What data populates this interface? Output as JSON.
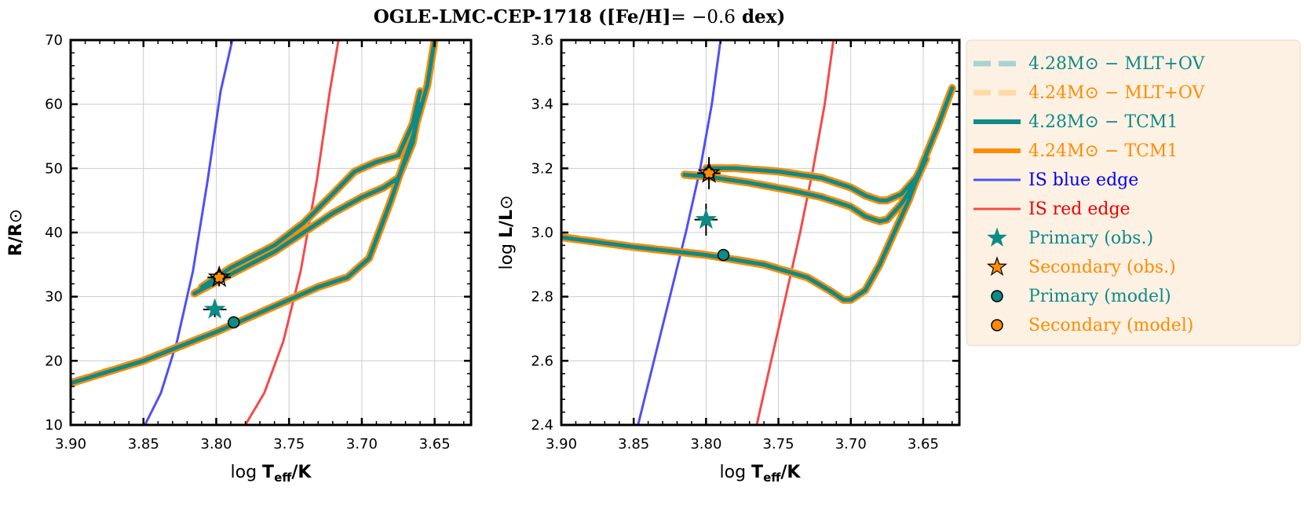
{
  "figure": {
    "title_name": "OGLE-LMC-CEP-1718",
    "title_feh": "([Fe/H]",
    "title_value": "= −0.6",
    "title_unit": "dex)"
  },
  "colors": {
    "teal": "#0e8a87",
    "orange": "#ff8c00",
    "teal_light": "#a7d3d2",
    "orange_light": "#ffd9a6",
    "blue_edge": "#5050f5",
    "red_edge": "#f54a4a",
    "grid": "#cccccc",
    "legend_bg": "#fdf1e4"
  },
  "legend": {
    "entries": [
      {
        "label": "4.28M⊙ − MLT+OV",
        "color": "#0e8a87",
        "kind": "dashed-teal"
      },
      {
        "label": "4.24M⊙ − MLT+OV",
        "color": "#ff8c00",
        "kind": "dashed-orange"
      },
      {
        "label": "4.28M⊙ − TCM1",
        "color": "#0e8a87",
        "kind": "solid-teal"
      },
      {
        "label": "4.24M⊙ − TCM1",
        "color": "#ff8c00",
        "kind": "solid-orange"
      },
      {
        "label": "IS blue edge",
        "color": "#0000ee",
        "kind": "blue-edge"
      },
      {
        "label": "IS red edge",
        "color": "#ee0000",
        "kind": "red-edge"
      },
      {
        "label": "Primary (obs.)",
        "color": "#0e8a87",
        "kind": "star-teal"
      },
      {
        "label": "Secondary (obs.)",
        "color": "#ff8c00",
        "kind": "star-orange"
      },
      {
        "label": "Primary (model)",
        "color": "#0e8a87",
        "kind": "dot-teal"
      },
      {
        "label": "Secondary (model)",
        "color": "#ff8c00",
        "kind": "dot-orange"
      }
    ]
  },
  "chart_data": [
    {
      "type": "line",
      "panel": "left",
      "xlabel": "log T_eff/K",
      "ylabel": "R/R⊙",
      "xlim": [
        3.9,
        3.625
      ],
      "ylim": [
        10,
        70
      ],
      "xticks": [
        3.9,
        3.85,
        3.8,
        3.75,
        3.7,
        3.65
      ],
      "xtick_labels": [
        "3.90",
        "3.85",
        "3.80",
        "3.75",
        "3.70",
        "3.65"
      ],
      "yticks": [
        10,
        20,
        30,
        40,
        50,
        60,
        70
      ],
      "ytick_labels": [
        "10",
        "20",
        "30",
        "40",
        "50",
        "60",
        "70"
      ],
      "grid": true,
      "series": [
        {
          "name": "IS blue edge",
          "x": [
            3.849,
            3.838,
            3.827,
            3.816,
            3.806,
            3.797,
            3.789
          ],
          "y": [
            10,
            15,
            23,
            34,
            48,
            62,
            70
          ]
        },
        {
          "name": "IS red edge",
          "x": [
            3.78,
            3.767,
            3.754,
            3.742,
            3.731,
            3.722,
            3.716
          ],
          "y": [
            10,
            15,
            23,
            34,
            48,
            62,
            70
          ]
        },
        {
          "name": "Evolutionary track (lower branch)",
          "x": [
            3.9,
            3.85,
            3.8,
            3.76,
            3.73,
            3.71,
            3.695,
            3.68,
            3.665,
            3.655,
            3.65
          ],
          "y": [
            16.5,
            20,
            24.5,
            28.5,
            31.5,
            33,
            36,
            45,
            55,
            63,
            70
          ]
        },
        {
          "name": "Evolutionary track (blue loop, lower)",
          "x": [
            3.815,
            3.79,
            3.76,
            3.74,
            3.72,
            3.7,
            3.685,
            3.675,
            3.665,
            3.66
          ],
          "y": [
            30.5,
            33.5,
            37,
            40,
            43,
            45.5,
            47,
            48.5,
            54,
            60
          ]
        },
        {
          "name": "Evolutionary track (blue loop, upper)",
          "x": [
            3.81,
            3.79,
            3.76,
            3.74,
            3.72,
            3.705,
            3.69,
            3.675,
            3.665,
            3.66
          ],
          "y": [
            31.5,
            34.5,
            38,
            41.5,
            46,
            49.5,
            51,
            52,
            57,
            62
          ]
        }
      ],
      "points": [
        {
          "name": "Primary (obs.)",
          "x": 3.801,
          "y": 28,
          "xerr": 0.008,
          "yerr": 1.2
        },
        {
          "name": "Secondary (obs.)",
          "x": 3.798,
          "y": 33,
          "xerr": 0.008,
          "yerr": 1.4
        },
        {
          "name": "Primary (model)",
          "x": 3.788,
          "y": 26
        },
        {
          "name": "Secondary (model)",
          "x": 3.798,
          "y": 33
        }
      ]
    },
    {
      "type": "line",
      "panel": "right",
      "xlabel": "log T_eff/K",
      "ylabel": "log L/L⊙",
      "xlim": [
        3.9,
        3.625
      ],
      "ylim": [
        2.4,
        3.6
      ],
      "xticks": [
        3.9,
        3.85,
        3.8,
        3.75,
        3.7,
        3.65
      ],
      "xtick_labels": [
        "3.90",
        "3.85",
        "3.80",
        "3.75",
        "3.70",
        "3.65"
      ],
      "yticks": [
        2.4,
        2.6,
        2.8,
        3.0,
        3.2,
        3.4,
        3.6
      ],
      "ytick_labels": [
        "2.4",
        "2.6",
        "2.8",
        "3.0",
        "3.2",
        "3.4",
        "3.6"
      ],
      "grid": true,
      "series": [
        {
          "name": "IS blue edge",
          "x": [
            3.847,
            3.836,
            3.825,
            3.814,
            3.804,
            3.796,
            3.79
          ],
          "y": [
            2.4,
            2.6,
            2.8,
            3.0,
            3.2,
            3.4,
            3.6
          ]
        },
        {
          "name": "IS red edge",
          "x": [
            3.765,
            3.755,
            3.745,
            3.735,
            3.726,
            3.718,
            3.712
          ],
          "y": [
            2.4,
            2.6,
            2.8,
            3.0,
            3.2,
            3.4,
            3.6
          ]
        },
        {
          "name": "Evolutionary track (lower branch)",
          "x": [
            3.9,
            3.85,
            3.8,
            3.76,
            3.73,
            3.715,
            3.705,
            3.7,
            3.69,
            3.68,
            3.67,
            3.66,
            3.65,
            3.64,
            3.63
          ],
          "y": [
            2.985,
            2.955,
            2.93,
            2.9,
            2.86,
            2.82,
            2.79,
            2.79,
            2.82,
            2.9,
            3.0,
            3.1,
            3.22,
            3.33,
            3.45
          ]
        },
        {
          "name": "Evolutionary track (blue loop, lower)",
          "x": [
            3.815,
            3.8,
            3.77,
            3.74,
            3.72,
            3.7,
            3.69,
            3.68,
            3.675,
            3.665,
            3.655,
            3.648
          ],
          "y": [
            3.18,
            3.175,
            3.155,
            3.13,
            3.11,
            3.08,
            3.05,
            3.035,
            3.04,
            3.09,
            3.16,
            3.23
          ]
        },
        {
          "name": "Evolutionary track (blue loop, upper)",
          "x": [
            3.8,
            3.78,
            3.75,
            3.72,
            3.7,
            3.69,
            3.68,
            3.675,
            3.665,
            3.655,
            3.648
          ],
          "y": [
            3.2,
            3.2,
            3.19,
            3.17,
            3.14,
            3.115,
            3.1,
            3.1,
            3.12,
            3.17,
            3.23
          ]
        }
      ],
      "points": [
        {
          "name": "Primary (obs.)",
          "x": 3.8,
          "y": 3.04,
          "xerr": 0.008,
          "yerr": 0.05
        },
        {
          "name": "Secondary (obs.)",
          "x": 3.798,
          "y": 3.185,
          "xerr": 0.008,
          "yerr": 0.05
        },
        {
          "name": "Primary (model)",
          "x": 3.788,
          "y": 2.93
        },
        {
          "name": "Secondary (model)",
          "x": 3.798,
          "y": 3.185
        }
      ]
    }
  ]
}
